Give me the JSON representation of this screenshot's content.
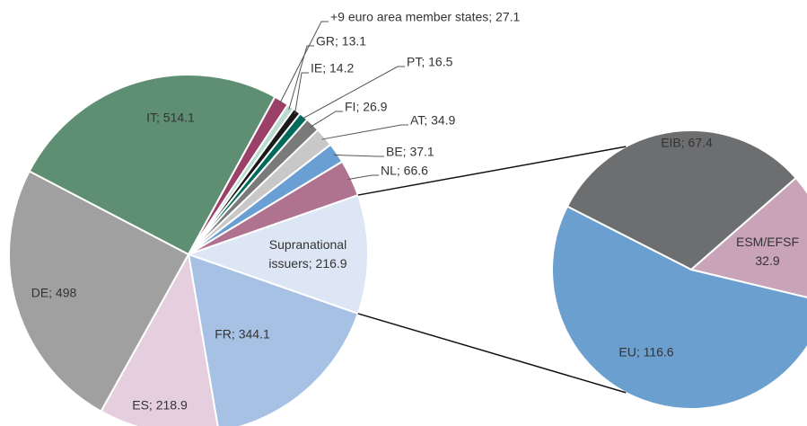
{
  "chart_data": [
    {
      "type": "pie",
      "values": [
        216.9,
        344.1,
        218.9,
        498,
        514.1,
        27.1,
        13.1,
        14.2,
        16.5,
        26.9,
        34.9,
        37.1,
        66.6
      ],
      "value_labels": [
        [
          "Supranational",
          "issuers; 216.9"
        ],
        "FR; 344.1",
        "ES; 218.9",
        "DE; 498",
        "IT; 514.1",
        "+9 euro area member states; 27.1",
        "GR; 13.1",
        "IE; 14.2",
        "PT; 16.5",
        "FI; 26.9",
        "AT; 34.9",
        "BE; 37.1",
        "NL; 66.6"
      ],
      "colors": [
        "#dde6f5",
        "#a7c1e4",
        "#e5cedd",
        "#a0a0a0",
        "#5e8f73",
        "#9b4169",
        "#b9dccd",
        "#1a1a1a",
        "#006b5a",
        "#7a7a7a",
        "#c8c8c8",
        "#6a9fd3",
        "#b0738f"
      ]
    },
    {
      "type": "pie",
      "values": [
        67.4,
        32.9,
        116.6
      ],
      "value_labels": [
        "EIB; 67.4",
        [
          "ESM/EFSF",
          "32.9"
        ],
        "EU; 116.6"
      ],
      "colors": [
        "#6d6e70",
        "#c9a3b8",
        "#6b9fcf"
      ]
    }
  ]
}
